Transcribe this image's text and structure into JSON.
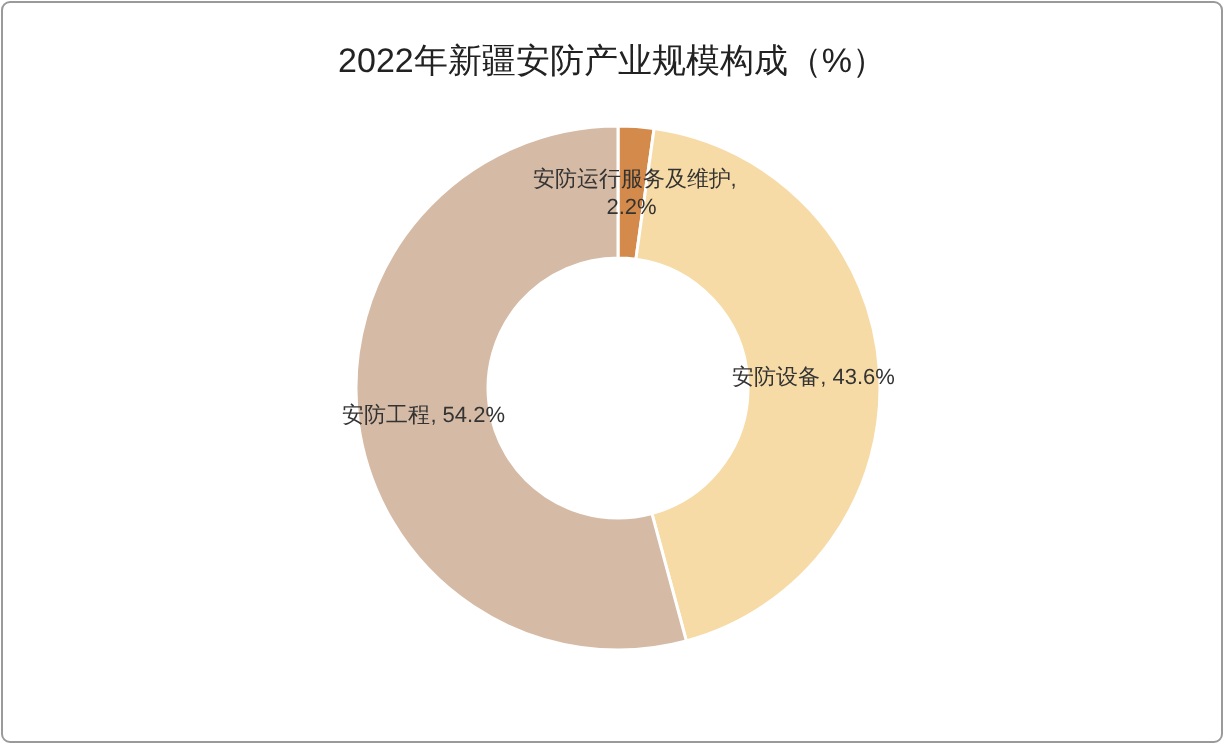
{
  "chart_data": {
    "type": "donut",
    "title": "2022年新疆安防产业规模构成（%）",
    "categories": [
      "安防运行服务及维护",
      "安防设备",
      "安防工程"
    ],
    "values": [
      2.2,
      43.6,
      54.2
    ],
    "colors": [
      "#d48a4a",
      "#f7dba6",
      "#d5baa5"
    ],
    "value_labels": [
      ", 2.2%",
      ", 43.6%",
      ", 54.2%"
    ]
  }
}
